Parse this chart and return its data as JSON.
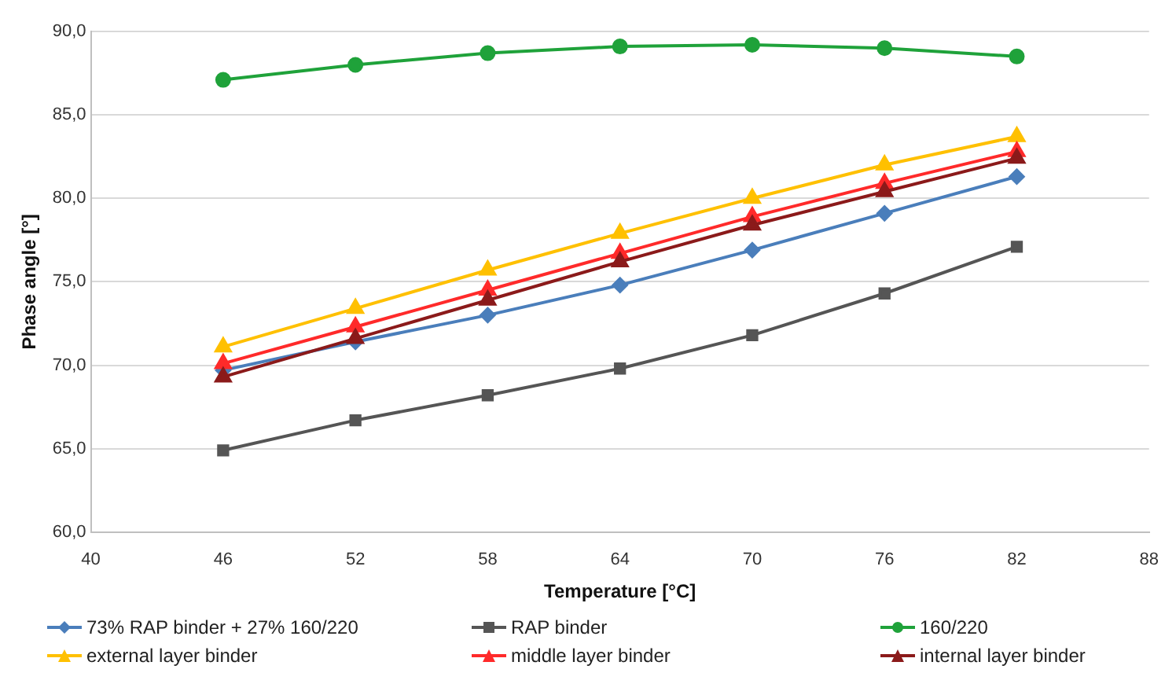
{
  "chart_data": {
    "type": "line",
    "xlabel": "Temperature [°C]",
    "ylabel": "Phase angle [°]",
    "x": [
      46,
      52,
      58,
      64,
      70,
      76,
      82
    ],
    "xlim": [
      40,
      88
    ],
    "xticks": [
      40,
      46,
      52,
      58,
      64,
      70,
      76,
      82,
      88
    ],
    "ylim": [
      60,
      90
    ],
    "yticks": [
      {
        "value": 60,
        "label": "60,0"
      },
      {
        "value": 65,
        "label": "65,0"
      },
      {
        "value": 70,
        "label": "70,0"
      },
      {
        "value": 75,
        "label": "75,0"
      },
      {
        "value": 80,
        "label": "80,0"
      },
      {
        "value": 85,
        "label": "85,0"
      },
      {
        "value": 90,
        "label": "90,0"
      }
    ],
    "grid": "y",
    "legend": "bottom",
    "line_style": "solid",
    "series": [
      {
        "name": "73% RAP binder + 27% 160/220",
        "color": "#4a7ebb",
        "marker": "diamond",
        "values": [
          69.7,
          71.4,
          73.0,
          74.8,
          76.9,
          79.1,
          81.3
        ]
      },
      {
        "name": "RAP binder",
        "color": "#555555",
        "marker": "square",
        "values": [
          64.9,
          66.7,
          68.2,
          69.8,
          71.8,
          74.3,
          77.1
        ]
      },
      {
        "name": "160/220",
        "color": "#1fa23a",
        "marker": "circle",
        "values": [
          87.1,
          88.0,
          88.7,
          89.1,
          89.2,
          89.0,
          88.5
        ]
      },
      {
        "name": "external layer binder",
        "color": "#ffc000",
        "marker": "triangle",
        "values": [
          71.1,
          73.4,
          75.7,
          77.9,
          80.0,
          82.0,
          83.7
        ]
      },
      {
        "name": "middle layer binder",
        "color": "#ff2a2a",
        "marker": "triangle",
        "values": [
          70.1,
          72.3,
          74.5,
          76.7,
          78.9,
          80.9,
          82.8
        ]
      },
      {
        "name": "internal layer binder",
        "color": "#8b1a1a",
        "marker": "triangle",
        "values": [
          69.3,
          71.6,
          73.9,
          76.2,
          78.4,
          80.4,
          82.4
        ]
      }
    ]
  }
}
